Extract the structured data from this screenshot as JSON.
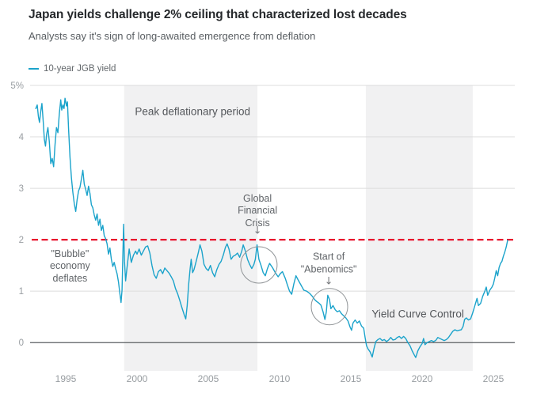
{
  "header": {
    "title": "Japan yields challenge 2% ceiling that characterized lost decades",
    "subtitle": "Analysts say it's sign of long-awaited emergence from deflation"
  },
  "legend": {
    "label": "10-year JGB yield",
    "color": "#1ba3cb"
  },
  "colors": {
    "line": "#1ba3cb",
    "reference_red": "#e8112d",
    "shading": "#f1f1f2",
    "gridline": "#dcdcdc",
    "zero_line": "#595d60",
    "circle_stroke": "#909497"
  },
  "chart_data": {
    "type": "line",
    "title": "Japan yields challenge 2% ceiling that characterized lost decades",
    "subtitle": "Analysts say it's sign of long-awaited emergence from deflation",
    "xlabel": "",
    "ylabel": "10-year JGB yield (%)",
    "xlim": [
      1992.5,
      2026.5
    ],
    "ylim": [
      -0.55,
      5
    ],
    "grid": true,
    "legend_position": "top-left",
    "x_ticks": [
      1995,
      2000,
      2005,
      2010,
      2015,
      2020,
      2025
    ],
    "y_ticks": [
      {
        "value": 5,
        "label": "5%"
      },
      {
        "value": 4,
        "label": "4"
      },
      {
        "value": 3,
        "label": "3"
      },
      {
        "value": 2,
        "label": "2"
      },
      {
        "value": 1,
        "label": "1"
      },
      {
        "value": 0,
        "label": "0"
      }
    ],
    "reference_line": {
      "value": 2.0,
      "style": "dashed",
      "color": "#e8112d"
    },
    "zero_line": {
      "value": 0,
      "color": "#595d60"
    },
    "shaded_regions": [
      {
        "id": "peak-deflationary-period",
        "from": 1999.1,
        "to": 2008.45,
        "label": "Peak deflationary period",
        "label_year": 2003.9,
        "label_value": 4.5,
        "label_style": "big"
      },
      {
        "id": "yield-curve-control",
        "from": 2016.05,
        "to": 2023.55,
        "label": "Yield Curve Control",
        "label_year": 2019.7,
        "label_value": 0.56,
        "label_style": "big"
      }
    ],
    "annotations": [
      {
        "id": "bubble-economy-deflates",
        "text": "\"Bubble\"\neconomy\ndeflates",
        "year": 1995.3,
        "value": 1.48
      },
      {
        "id": "global-financial-crisis",
        "text": "Global\nFinancial\nCrisis",
        "year": 2008.45,
        "value": 2.56,
        "arrow": {
          "year": 2008.45,
          "value": 2.17
        },
        "circle": {
          "year": 2008.55,
          "value": 1.51,
          "radius_px": 23
        }
      },
      {
        "id": "start-of-abenomics",
        "text": "Start of\n\"Abenomics\"",
        "year": 2013.45,
        "value": 1.54,
        "arrow": {
          "year": 2013.45,
          "value": 1.19
        },
        "circle": {
          "year": 2013.5,
          "value": 0.7,
          "radius_px": 23
        }
      }
    ],
    "series": [
      {
        "name": "10-year JGB yield",
        "color": "#1ba3cb",
        "points": [
          [
            1992.9,
            4.55
          ],
          [
            1993.0,
            4.62
          ],
          [
            1993.08,
            4.4
          ],
          [
            1993.16,
            4.28
          ],
          [
            1993.25,
            4.5
          ],
          [
            1993.33,
            4.65
          ],
          [
            1993.42,
            4.3
          ],
          [
            1993.5,
            3.95
          ],
          [
            1993.58,
            3.82
          ],
          [
            1993.66,
            4.05
          ],
          [
            1993.75,
            4.18
          ],
          [
            1993.85,
            3.9
          ],
          [
            1993.95,
            3.48
          ],
          [
            1994.05,
            3.58
          ],
          [
            1994.15,
            3.42
          ],
          [
            1994.25,
            3.85
          ],
          [
            1994.35,
            4.18
          ],
          [
            1994.45,
            4.08
          ],
          [
            1994.55,
            4.45
          ],
          [
            1994.65,
            4.72
          ],
          [
            1994.72,
            4.52
          ],
          [
            1994.8,
            4.62
          ],
          [
            1994.88,
            4.55
          ],
          [
            1994.95,
            4.75
          ],
          [
            1995.05,
            4.6
          ],
          [
            1995.12,
            4.68
          ],
          [
            1995.2,
            4.15
          ],
          [
            1995.3,
            3.6
          ],
          [
            1995.4,
            3.2
          ],
          [
            1995.5,
            2.92
          ],
          [
            1995.6,
            2.7
          ],
          [
            1995.7,
            2.55
          ],
          [
            1995.8,
            2.78
          ],
          [
            1995.9,
            2.95
          ],
          [
            1996.0,
            3.02
          ],
          [
            1996.1,
            3.18
          ],
          [
            1996.2,
            3.35
          ],
          [
            1996.3,
            3.08
          ],
          [
            1996.4,
            2.98
          ],
          [
            1996.5,
            2.86
          ],
          [
            1996.6,
            3.04
          ],
          [
            1996.7,
            2.9
          ],
          [
            1996.8,
            2.68
          ],
          [
            1996.9,
            2.62
          ],
          [
            1997.0,
            2.48
          ],
          [
            1997.1,
            2.38
          ],
          [
            1997.2,
            2.5
          ],
          [
            1997.3,
            2.28
          ],
          [
            1997.4,
            2.4
          ],
          [
            1997.5,
            2.18
          ],
          [
            1997.6,
            2.28
          ],
          [
            1997.7,
            2.08
          ],
          [
            1997.8,
            2.02
          ],
          [
            1997.9,
            1.92
          ],
          [
            1998.0,
            1.72
          ],
          [
            1998.1,
            1.84
          ],
          [
            1998.2,
            1.62
          ],
          [
            1998.3,
            1.48
          ],
          [
            1998.4,
            1.56
          ],
          [
            1998.5,
            1.44
          ],
          [
            1998.6,
            1.34
          ],
          [
            1998.7,
            1.18
          ],
          [
            1998.8,
            0.95
          ],
          [
            1998.88,
            0.78
          ],
          [
            1998.95,
            1.02
          ],
          [
            1999.0,
            1.62
          ],
          [
            1999.06,
            2.3
          ],
          [
            1999.12,
            1.58
          ],
          [
            1999.2,
            1.2
          ],
          [
            1999.3,
            1.46
          ],
          [
            1999.45,
            1.82
          ],
          [
            1999.6,
            1.56
          ],
          [
            1999.75,
            1.7
          ],
          [
            1999.9,
            1.78
          ],
          [
            2000.0,
            1.72
          ],
          [
            2000.15,
            1.82
          ],
          [
            2000.3,
            1.7
          ],
          [
            2000.45,
            1.78
          ],
          [
            2000.6,
            1.86
          ],
          [
            2000.75,
            1.88
          ],
          [
            2000.9,
            1.74
          ],
          [
            2001.05,
            1.5
          ],
          [
            2001.2,
            1.32
          ],
          [
            2001.35,
            1.25
          ],
          [
            2001.5,
            1.38
          ],
          [
            2001.65,
            1.42
          ],
          [
            2001.8,
            1.34
          ],
          [
            2001.95,
            1.45
          ],
          [
            2002.1,
            1.4
          ],
          [
            2002.25,
            1.35
          ],
          [
            2002.4,
            1.28
          ],
          [
            2002.55,
            1.2
          ],
          [
            2002.7,
            1.05
          ],
          [
            2002.85,
            0.95
          ],
          [
            2003.0,
            0.82
          ],
          [
            2003.15,
            0.68
          ],
          [
            2003.3,
            0.55
          ],
          [
            2003.42,
            0.46
          ],
          [
            2003.52,
            0.72
          ],
          [
            2003.62,
            1.12
          ],
          [
            2003.72,
            1.42
          ],
          [
            2003.8,
            1.62
          ],
          [
            2003.9,
            1.36
          ],
          [
            2004.0,
            1.42
          ],
          [
            2004.15,
            1.58
          ],
          [
            2004.3,
            1.75
          ],
          [
            2004.42,
            1.9
          ],
          [
            2004.55,
            1.78
          ],
          [
            2004.7,
            1.52
          ],
          [
            2004.85,
            1.44
          ],
          [
            2005.0,
            1.4
          ],
          [
            2005.15,
            1.5
          ],
          [
            2005.3,
            1.36
          ],
          [
            2005.45,
            1.28
          ],
          [
            2005.6,
            1.42
          ],
          [
            2005.75,
            1.52
          ],
          [
            2005.9,
            1.58
          ],
          [
            2006.05,
            1.7
          ],
          [
            2006.2,
            1.85
          ],
          [
            2006.32,
            1.92
          ],
          [
            2006.45,
            1.82
          ],
          [
            2006.6,
            1.62
          ],
          [
            2006.75,
            1.68
          ],
          [
            2006.9,
            1.7
          ],
          [
            2007.05,
            1.74
          ],
          [
            2007.2,
            1.66
          ],
          [
            2007.35,
            1.78
          ],
          [
            2007.45,
            1.9
          ],
          [
            2007.6,
            1.78
          ],
          [
            2007.75,
            1.62
          ],
          [
            2007.9,
            1.52
          ],
          [
            2008.05,
            1.44
          ],
          [
            2008.2,
            1.52
          ],
          [
            2008.3,
            1.62
          ],
          [
            2008.42,
            1.9
          ],
          [
            2008.55,
            1.62
          ],
          [
            2008.7,
            1.5
          ],
          [
            2008.85,
            1.36
          ],
          [
            2009.0,
            1.3
          ],
          [
            2009.15,
            1.44
          ],
          [
            2009.3,
            1.54
          ],
          [
            2009.5,
            1.46
          ],
          [
            2009.7,
            1.36
          ],
          [
            2009.9,
            1.28
          ],
          [
            2010.05,
            1.34
          ],
          [
            2010.2,
            1.38
          ],
          [
            2010.4,
            1.25
          ],
          [
            2010.55,
            1.12
          ],
          [
            2010.7,
            1.0
          ],
          [
            2010.85,
            0.94
          ],
          [
            2011.0,
            1.14
          ],
          [
            2011.15,
            1.3
          ],
          [
            2011.3,
            1.22
          ],
          [
            2011.5,
            1.12
          ],
          [
            2011.7,
            1.02
          ],
          [
            2011.9,
            1.0
          ],
          [
            2012.1,
            0.96
          ],
          [
            2012.3,
            0.9
          ],
          [
            2012.45,
            0.84
          ],
          [
            2012.6,
            0.8
          ],
          [
            2012.75,
            0.77
          ],
          [
            2012.9,
            0.73
          ],
          [
            2013.05,
            0.6
          ],
          [
            2013.18,
            0.45
          ],
          [
            2013.28,
            0.6
          ],
          [
            2013.38,
            0.92
          ],
          [
            2013.5,
            0.84
          ],
          [
            2013.6,
            0.66
          ],
          [
            2013.75,
            0.72
          ],
          [
            2013.9,
            0.64
          ],
          [
            2014.05,
            0.6
          ],
          [
            2014.2,
            0.62
          ],
          [
            2014.35,
            0.56
          ],
          [
            2014.5,
            0.52
          ],
          [
            2014.65,
            0.48
          ],
          [
            2014.8,
            0.42
          ],
          [
            2014.95,
            0.3
          ],
          [
            2015.05,
            0.24
          ],
          [
            2015.15,
            0.38
          ],
          [
            2015.3,
            0.44
          ],
          [
            2015.45,
            0.38
          ],
          [
            2015.6,
            0.42
          ],
          [
            2015.75,
            0.32
          ],
          [
            2015.9,
            0.28
          ],
          [
            2016.0,
            0.1
          ],
          [
            2016.1,
            -0.06
          ],
          [
            2016.2,
            -0.12
          ],
          [
            2016.35,
            -0.18
          ],
          [
            2016.5,
            -0.28
          ],
          [
            2016.62,
            -0.12
          ],
          [
            2016.75,
            0.02
          ],
          [
            2016.9,
            0.06
          ],
          [
            2017.05,
            0.08
          ],
          [
            2017.2,
            0.04
          ],
          [
            2017.35,
            0.06
          ],
          [
            2017.5,
            0.02
          ],
          [
            2017.65,
            0.05
          ],
          [
            2017.8,
            0.1
          ],
          [
            2017.95,
            0.05
          ],
          [
            2018.1,
            0.06
          ],
          [
            2018.25,
            0.1
          ],
          [
            2018.4,
            0.12
          ],
          [
            2018.55,
            0.08
          ],
          [
            2018.7,
            0.12
          ],
          [
            2018.85,
            0.08
          ],
          [
            2019.0,
            0.0
          ],
          [
            2019.15,
            -0.06
          ],
          [
            2019.3,
            -0.16
          ],
          [
            2019.45,
            -0.24
          ],
          [
            2019.55,
            -0.29
          ],
          [
            2019.7,
            -0.16
          ],
          [
            2019.85,
            -0.08
          ],
          [
            2020.0,
            -0.02
          ],
          [
            2020.1,
            0.08
          ],
          [
            2020.2,
            -0.04
          ],
          [
            2020.35,
            0.0
          ],
          [
            2020.5,
            0.02
          ],
          [
            2020.65,
            0.04
          ],
          [
            2020.8,
            0.02
          ],
          [
            2020.95,
            0.04
          ],
          [
            2021.1,
            0.1
          ],
          [
            2021.25,
            0.08
          ],
          [
            2021.4,
            0.06
          ],
          [
            2021.55,
            0.04
          ],
          [
            2021.7,
            0.06
          ],
          [
            2021.85,
            0.1
          ],
          [
            2022.0,
            0.16
          ],
          [
            2022.15,
            0.22
          ],
          [
            2022.3,
            0.25
          ],
          [
            2022.45,
            0.23
          ],
          [
            2022.6,
            0.24
          ],
          [
            2022.75,
            0.25
          ],
          [
            2022.88,
            0.32
          ],
          [
            2022.98,
            0.45
          ],
          [
            2023.1,
            0.48
          ],
          [
            2023.25,
            0.44
          ],
          [
            2023.4,
            0.46
          ],
          [
            2023.55,
            0.58
          ],
          [
            2023.7,
            0.72
          ],
          [
            2023.85,
            0.86
          ],
          [
            2023.95,
            0.72
          ],
          [
            2024.1,
            0.76
          ],
          [
            2024.25,
            0.9
          ],
          [
            2024.4,
            1.0
          ],
          [
            2024.5,
            1.08
          ],
          [
            2024.6,
            0.92
          ],
          [
            2024.75,
            1.02
          ],
          [
            2024.9,
            1.08
          ],
          [
            2025.0,
            1.14
          ],
          [
            2025.1,
            1.26
          ],
          [
            2025.2,
            1.4
          ],
          [
            2025.3,
            1.3
          ],
          [
            2025.4,
            1.46
          ],
          [
            2025.5,
            1.54
          ],
          [
            2025.6,
            1.58
          ],
          [
            2025.7,
            1.68
          ],
          [
            2025.8,
            1.76
          ],
          [
            2025.9,
            1.86
          ],
          [
            2026.0,
            1.99
          ]
        ]
      }
    ]
  }
}
